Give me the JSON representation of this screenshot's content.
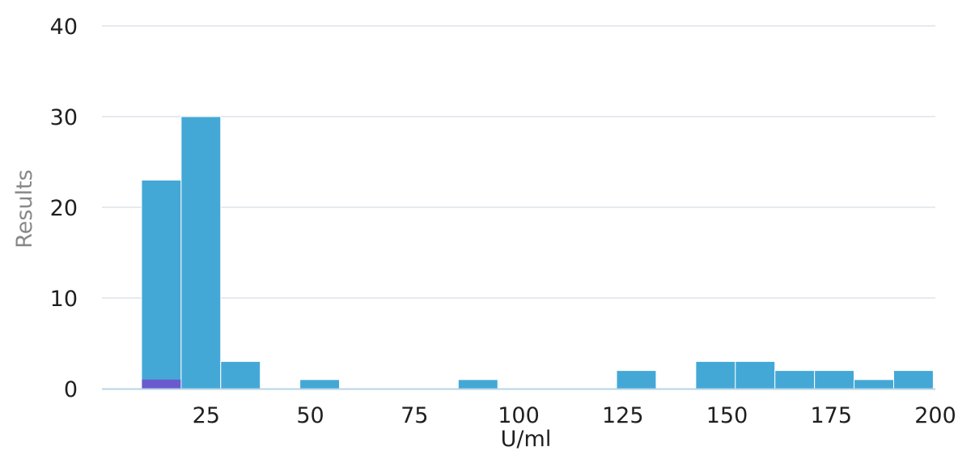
{
  "chart_data": {
    "type": "bar",
    "xlabel": "U/ml",
    "ylabel": "Results",
    "xlim": [
      0,
      200
    ],
    "ylim": [
      0,
      40
    ],
    "x_ticks": [
      25,
      50,
      75,
      100,
      125,
      150,
      175,
      200
    ],
    "y_ticks": [
      0,
      10,
      20,
      30,
      40
    ],
    "grid": "horizontal",
    "bins": [
      {
        "x0": 9.5,
        "x1": 19,
        "value": 23
      },
      {
        "x0": 19,
        "x1": 28.5,
        "value": 30
      },
      {
        "x0": 28.5,
        "x1": 38,
        "value": 3
      },
      {
        "x0": 47.5,
        "x1": 57,
        "value": 1
      },
      {
        "x0": 85.5,
        "x1": 95,
        "value": 1
      },
      {
        "x0": 123.5,
        "x1": 133,
        "value": 2
      },
      {
        "x0": 142.5,
        "x1": 152,
        "value": 3
      },
      {
        "x0": 152,
        "x1": 161.5,
        "value": 3
      },
      {
        "x0": 161.5,
        "x1": 171,
        "value": 2
      },
      {
        "x0": 171,
        "x1": 180.5,
        "value": 2
      },
      {
        "x0": 180.5,
        "x1": 190,
        "value": 1
      },
      {
        "x0": 190,
        "x1": 199.5,
        "value": 2
      }
    ],
    "highlight_bins": [
      {
        "x0": 9.5,
        "x1": 19,
        "value": 1
      }
    ],
    "colors": {
      "bar": "#44a8d6",
      "highlight": "#6a5acd",
      "grid": "#dde3ea",
      "axis": "#b7d3e6",
      "tick_text": "#1f1f1f",
      "xlabel_text": "#1f1f1f",
      "ylabel_text": "#888888"
    }
  }
}
